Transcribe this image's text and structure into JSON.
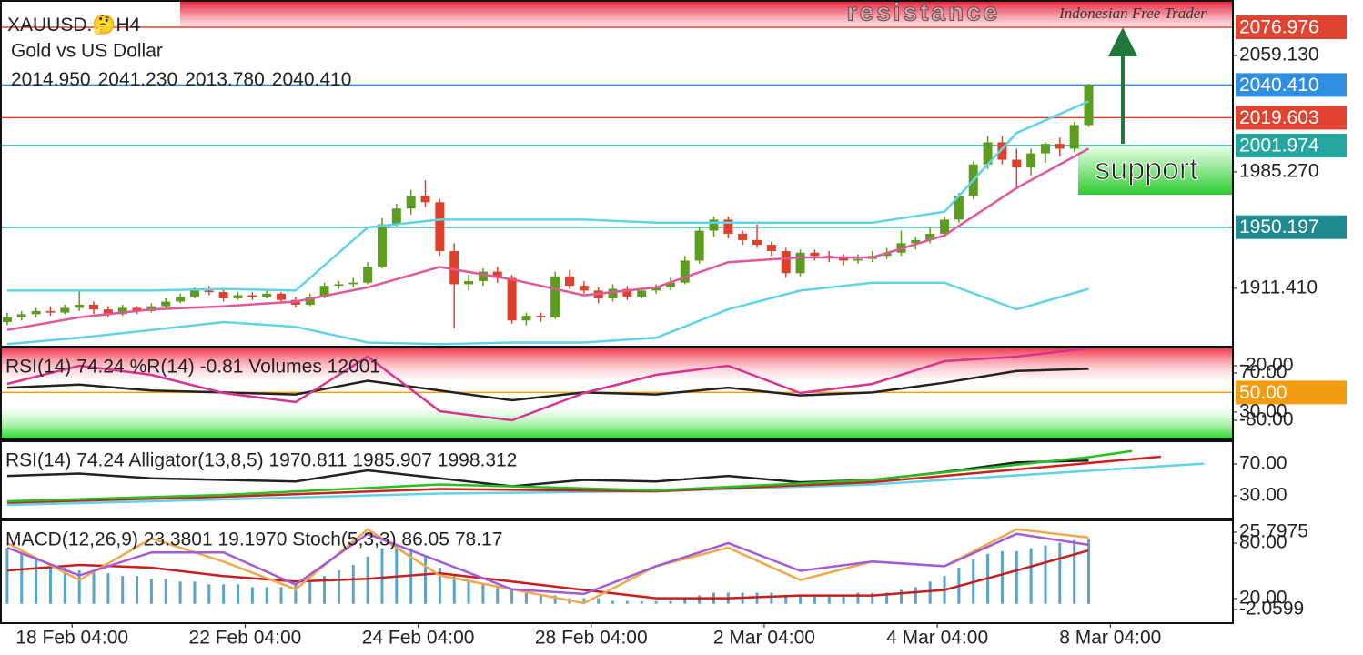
{
  "header": {
    "symbol": "XAUUSD.",
    "emoji": "🤔",
    "timeframe": "H4",
    "name": "Gold vs US Dollar",
    "ohlc": [
      {
        "value": 2014.95,
        "label": "2014.950"
      },
      {
        "value": 2041.23,
        "label": "2041.230"
      },
      {
        "value": 2013.78,
        "label": "2013.780"
      },
      {
        "value": 2040.41,
        "label": "2040.410"
      }
    ]
  },
  "annotations": {
    "resistance": "resistance",
    "watermark": "Indonesian Free Trader",
    "support": "support"
  },
  "chart_data": [
    {
      "type": "candlestick",
      "up_color": "#5c9c1e",
      "down_color": "#e0402a",
      "xlim": [
        -0.5,
        85
      ],
      "ylim": [
        1875,
        2094.3
      ],
      "xticks": [
        {
          "value": 4.5,
          "label": "18 Feb 04:00"
        },
        {
          "value": 16.5,
          "label": "22 Feb 04:00"
        },
        {
          "value": 28.5,
          "label": "24 Feb 04:00"
        },
        {
          "value": 40.5,
          "label": "28 Feb 04:00"
        },
        {
          "value": 52.5,
          "label": "2 Mar 04:00"
        },
        {
          "value": 64.5,
          "label": "4 Mar 04:00"
        },
        {
          "value": 76.5,
          "label": "8 Mar 04:00"
        }
      ],
      "yticks": [
        {
          "value": 2059.13,
          "label": "2059.130"
        },
        {
          "value": 1985.27,
          "label": "1985.270"
        },
        {
          "value": 1911.41,
          "label": "1911.410"
        }
      ],
      "levels": [
        {
          "value": 2076.976,
          "color": "#e0432f"
        },
        {
          "value": 2040.41,
          "label": "2040.410",
          "color": "#2f8ee0"
        },
        {
          "value": 2019.603,
          "color": "#e0432f"
        },
        {
          "value": 2001.974,
          "color": "#26a6a0"
        },
        {
          "value": 1950.197,
          "color": "#1f8a8f"
        }
      ],
      "ohlc": [
        [
          1890,
          1896,
          1888,
          1893
        ],
        [
          1893,
          1897,
          1891,
          1895
        ],
        [
          1895,
          1899,
          1893,
          1897
        ],
        [
          1897,
          1900,
          1894,
          1896
        ],
        [
          1896,
          1901,
          1895,
          1899
        ],
        [
          1899,
          1910,
          1897,
          1901
        ],
        [
          1901,
          1903,
          1895,
          1898
        ],
        [
          1898,
          1900,
          1893,
          1895
        ],
        [
          1895,
          1901,
          1894,
          1899
        ],
        [
          1899,
          1900,
          1895,
          1897
        ],
        [
          1897,
          1902,
          1896,
          1900
        ],
        [
          1900,
          1905,
          1899,
          1903
        ],
        [
          1903,
          1908,
          1902,
          1906
        ],
        [
          1906,
          1912,
          1905,
          1910
        ],
        [
          1910,
          1913,
          1907,
          1909
        ],
        [
          1909,
          1911,
          1903,
          1905
        ],
        [
          1905,
          1909,
          1904,
          1907
        ],
        [
          1907,
          1909,
          1904,
          1906
        ],
        [
          1906,
          1910,
          1905,
          1908
        ],
        [
          1908,
          1909,
          1902,
          1904
        ],
        [
          1904,
          1906,
          1899,
          1901
        ],
        [
          1901,
          1908,
          1900,
          1906
        ],
        [
          1906,
          1915,
          1905,
          1913
        ],
        [
          1913,
          1916,
          1911,
          1914
        ],
        [
          1914,
          1918,
          1912,
          1915
        ],
        [
          1915,
          1928,
          1914,
          1925
        ],
        [
          1925,
          1956,
          1924,
          1952
        ],
        [
          1952,
          1965,
          1950,
          1962
        ],
        [
          1962,
          1974,
          1958,
          1970
        ],
        [
          1970,
          1980,
          1963,
          1966
        ],
        [
          1966,
          1968,
          1932,
          1935
        ],
        [
          1935,
          1940,
          1886,
          1914
        ],
        [
          1914,
          1920,
          1910,
          1916
        ],
        [
          1916,
          1924,
          1913,
          1922
        ],
        [
          1922,
          1925,
          1915,
          1918
        ],
        [
          1918,
          1920,
          1889,
          1891
        ],
        [
          1891,
          1896,
          1888,
          1894
        ],
        [
          1894,
          1896,
          1890,
          1893
        ],
        [
          1893,
          1922,
          1892,
          1919
        ],
        [
          1919,
          1923,
          1911,
          1913
        ],
        [
          1913,
          1916,
          1908,
          1910
        ],
        [
          1910,
          1912,
          1902,
          1905
        ],
        [
          1905,
          1914,
          1903,
          1911
        ],
        [
          1911,
          1913,
          1904,
          1906
        ],
        [
          1906,
          1912,
          1905,
          1910
        ],
        [
          1910,
          1914,
          1908,
          1912
        ],
        [
          1912,
          1918,
          1910,
          1915
        ],
        [
          1915,
          1932,
          1914,
          1929
        ],
        [
          1929,
          1950,
          1927,
          1948
        ],
        [
          1948,
          1957,
          1944,
          1955
        ],
        [
          1955,
          1957,
          1943,
          1946
        ],
        [
          1946,
          1948,
          1939,
          1942
        ],
        [
          1942,
          1952,
          1937,
          1939
        ],
        [
          1939,
          1941,
          1932,
          1935
        ],
        [
          1935,
          1937,
          1918,
          1921
        ],
        [
          1921,
          1936,
          1919,
          1934
        ],
        [
          1934,
          1936,
          1929,
          1932
        ],
        [
          1932,
          1935,
          1928,
          1931
        ],
        [
          1931,
          1933,
          1926,
          1929
        ],
        [
          1929,
          1933,
          1927,
          1930
        ],
        [
          1930,
          1935,
          1928,
          1932
        ],
        [
          1932,
          1937,
          1930,
          1934
        ],
        [
          1934,
          1948,
          1932,
          1940
        ],
        [
          1940,
          1944,
          1936,
          1942
        ],
        [
          1942,
          1950,
          1940,
          1946
        ],
        [
          1946,
          1957,
          1944,
          1955
        ],
        [
          1955,
          1972,
          1953,
          1970
        ],
        [
          1970,
          1992,
          1968,
          1990
        ],
        [
          1990,
          2008,
          1987,
          2004
        ],
        [
          2004,
          2008,
          1990,
          1993
        ],
        [
          1993,
          2000,
          1975,
          1988
        ],
        [
          1988,
          2000,
          1983,
          1997
        ],
        [
          1997,
          2004,
          1991,
          2003
        ],
        [
          2003,
          2007,
          1995,
          2000
        ],
        [
          2000,
          2017,
          1998,
          2015
        ],
        [
          2014.95,
          2041.23,
          2013.78,
          2040.41
        ]
      ],
      "series": [
        {
          "color": "#5fd3e8",
          "x": [
            0,
            5,
            10,
            15,
            20,
            25,
            30,
            35,
            40,
            45,
            50,
            55,
            60,
            65,
            70,
            75
          ],
          "values": [
            1910,
            1910,
            1910,
            1911,
            1910,
            1950,
            1955,
            1955,
            1955,
            1953,
            1953,
            1953,
            1953,
            1960,
            2010,
            2030
          ]
        },
        {
          "color": "#e0589a",
          "x": [
            0,
            5,
            10,
            15,
            20,
            25,
            30,
            35,
            40,
            45,
            50,
            55,
            60,
            65,
            70,
            75
          ],
          "values": [
            1885,
            1893,
            1898,
            1900,
            1903,
            1912,
            1925,
            1917,
            1907,
            1912,
            1928,
            1931,
            1931,
            1945,
            1975,
            2000
          ]
        },
        {
          "color": "#5fd3e8",
          "x": [
            0,
            5,
            10,
            15,
            20,
            25,
            30,
            35,
            40,
            45,
            50,
            55,
            60,
            65,
            70,
            75
          ],
          "values": [
            1876,
            1880,
            1885,
            1890,
            1887,
            1877,
            1876,
            1877,
            1877,
            1880,
            1898,
            1910,
            1915,
            1915,
            1898,
            1911
          ]
        }
      ]
    },
    {
      "type": "line",
      "title": "RSI(14) 74.24 %R(14) -0.81 Volumes 12001",
      "xlim": [
        -0.5,
        85
      ],
      "ylim": [
        2,
        96
      ],
      "y2lim": [
        -101,
        0
      ],
      "yticks": [
        {
          "value": 70,
          "label": "70.00"
        },
        {
          "value": 30,
          "label": "30.00"
        }
      ],
      "y2ticks": [
        {
          "value": -20,
          "label": "-20.00"
        },
        {
          "value": -80,
          "label": "-80.00"
        }
      ],
      "levels": [
        {
          "value": 50,
          "label": "50.00",
          "color": "#f39c12"
        }
      ],
      "series": [
        {
          "color": "#222222",
          "x": [
            0,
            5,
            10,
            15,
            20,
            25,
            30,
            35,
            40,
            45,
            50,
            55,
            60,
            65,
            70,
            75
          ],
          "values": [
            55,
            58,
            52,
            50,
            48,
            62,
            52,
            42,
            50,
            48,
            55,
            47,
            50,
            60,
            72,
            74.24
          ]
        },
        {
          "color": "#d6348f",
          "axis": "y2",
          "x": [
            0,
            5,
            10,
            15,
            20,
            25,
            30,
            35,
            40,
            45,
            50,
            55,
            60,
            65,
            70,
            75
          ],
          "values": [
            -40,
            -20,
            -30,
            -50,
            -60,
            -10,
            -70,
            -80,
            -50,
            -30,
            -20,
            -50,
            -40,
            -15,
            -10,
            -0.81
          ]
        }
      ]
    },
    {
      "type": "line",
      "title": "RSI(14) 74.24 Alligator(13,8,5) 1970.811 1985.907 1998.312",
      "xlim": [
        -0.5,
        85
      ],
      "ylim": [
        1.4,
        98.6
      ],
      "y2lim": [
        1850,
        2020
      ],
      "yticks": [
        {
          "value": 70,
          "label": "70.00"
        },
        {
          "value": 30,
          "label": "30.00"
        }
      ],
      "series": [
        {
          "color": "#222222",
          "x": [
            0,
            5,
            10,
            15,
            20,
            25,
            30,
            35,
            40,
            45,
            50,
            55,
            60,
            65,
            70,
            75
          ],
          "values": [
            55,
            58,
            52,
            50,
            48,
            62,
            52,
            42,
            50,
            48,
            55,
            47,
            50,
            60,
            72,
            74.24
          ]
        },
        {
          "color": "#5fd3e8",
          "axis": "y2",
          "x": [
            0,
            15,
            30,
            45,
            60,
            75,
            83
          ],
          "values": [
            1880,
            1892,
            1905,
            1910,
            1925,
            1955,
            1970.811
          ]
        },
        {
          "color": "#d21f1f",
          "axis": "y2",
          "x": [
            0,
            15,
            30,
            45,
            60,
            75,
            80
          ],
          "values": [
            1885,
            1898,
            1915,
            1910,
            1930,
            1972,
            1985.907
          ]
        },
        {
          "color": "#22c322",
          "axis": "y2",
          "x": [
            0,
            15,
            30,
            45,
            60,
            75,
            78
          ],
          "values": [
            1888,
            1902,
            1925,
            1912,
            1935,
            1985,
            1998.312
          ]
        }
      ]
    },
    {
      "type": "macd",
      "title": "MACD(12,26,9) 23.3801 19.1970 Stoch(5,3,3) 86.05 78.17",
      "xlim": [
        -0.5,
        85
      ],
      "ylim": [
        -6.98,
        30.06
      ],
      "y2lim": [
        -6.6,
        104.6
      ],
      "yticks": [
        25.7975,
        -2.0599
      ],
      "y2ticks": [
        {
          "value": 80,
          "label": "80.00"
        },
        {
          "value": 20,
          "label": "20.00"
        }
      ],
      "histogram_color": "#5ba3c9",
      "histogram": [
        20,
        18,
        16,
        14,
        13,
        12,
        12,
        11,
        10,
        10,
        9,
        9,
        8,
        8,
        7,
        7,
        7,
        6,
        6,
        6,
        7,
        8,
        10,
        12,
        14,
        17,
        20,
        21,
        20,
        17,
        13,
        10,
        8,
        7,
        6,
        5,
        4,
        3,
        3,
        2,
        2,
        2,
        1,
        1,
        1,
        1,
        1,
        2,
        3,
        4,
        4,
        4,
        4,
        4,
        3,
        3,
        3,
        3,
        3,
        4,
        4,
        4,
        5,
        6,
        8,
        10,
        13,
        16,
        18,
        19,
        19,
        20,
        21,
        22,
        23,
        23.3801
      ],
      "series": [
        {
          "color": "#c81e1e",
          "x": [
            0,
            5,
            10,
            15,
            20,
            25,
            30,
            35,
            40,
            45,
            50,
            55,
            60,
            65,
            70,
            75
          ],
          "values": [
            12,
            14,
            13,
            10,
            8,
            9,
            11,
            8,
            5,
            2,
            2,
            3,
            3,
            5,
            12,
            19.197
          ]
        },
        {
          "color": "#f0a84a",
          "axis": "y2",
          "x": [
            0,
            5,
            10,
            15,
            20,
            25,
            30,
            35,
            40,
            45,
            50,
            55,
            60,
            65,
            70,
            75
          ],
          "values": [
            80,
            40,
            85,
            60,
            30,
            95,
            45,
            30,
            15,
            55,
            75,
            40,
            60,
            55,
            95,
            86.05
          ]
        },
        {
          "color": "#a45bd6",
          "axis": "y2",
          "x": [
            0,
            5,
            10,
            15,
            20,
            25,
            30,
            35,
            40,
            45,
            50,
            55,
            60,
            65,
            70,
            75
          ],
          "values": [
            75,
            45,
            70,
            70,
            35,
            90,
            60,
            30,
            25,
            55,
            80,
            50,
            60,
            55,
            90,
            78.17
          ]
        }
      ]
    }
  ]
}
